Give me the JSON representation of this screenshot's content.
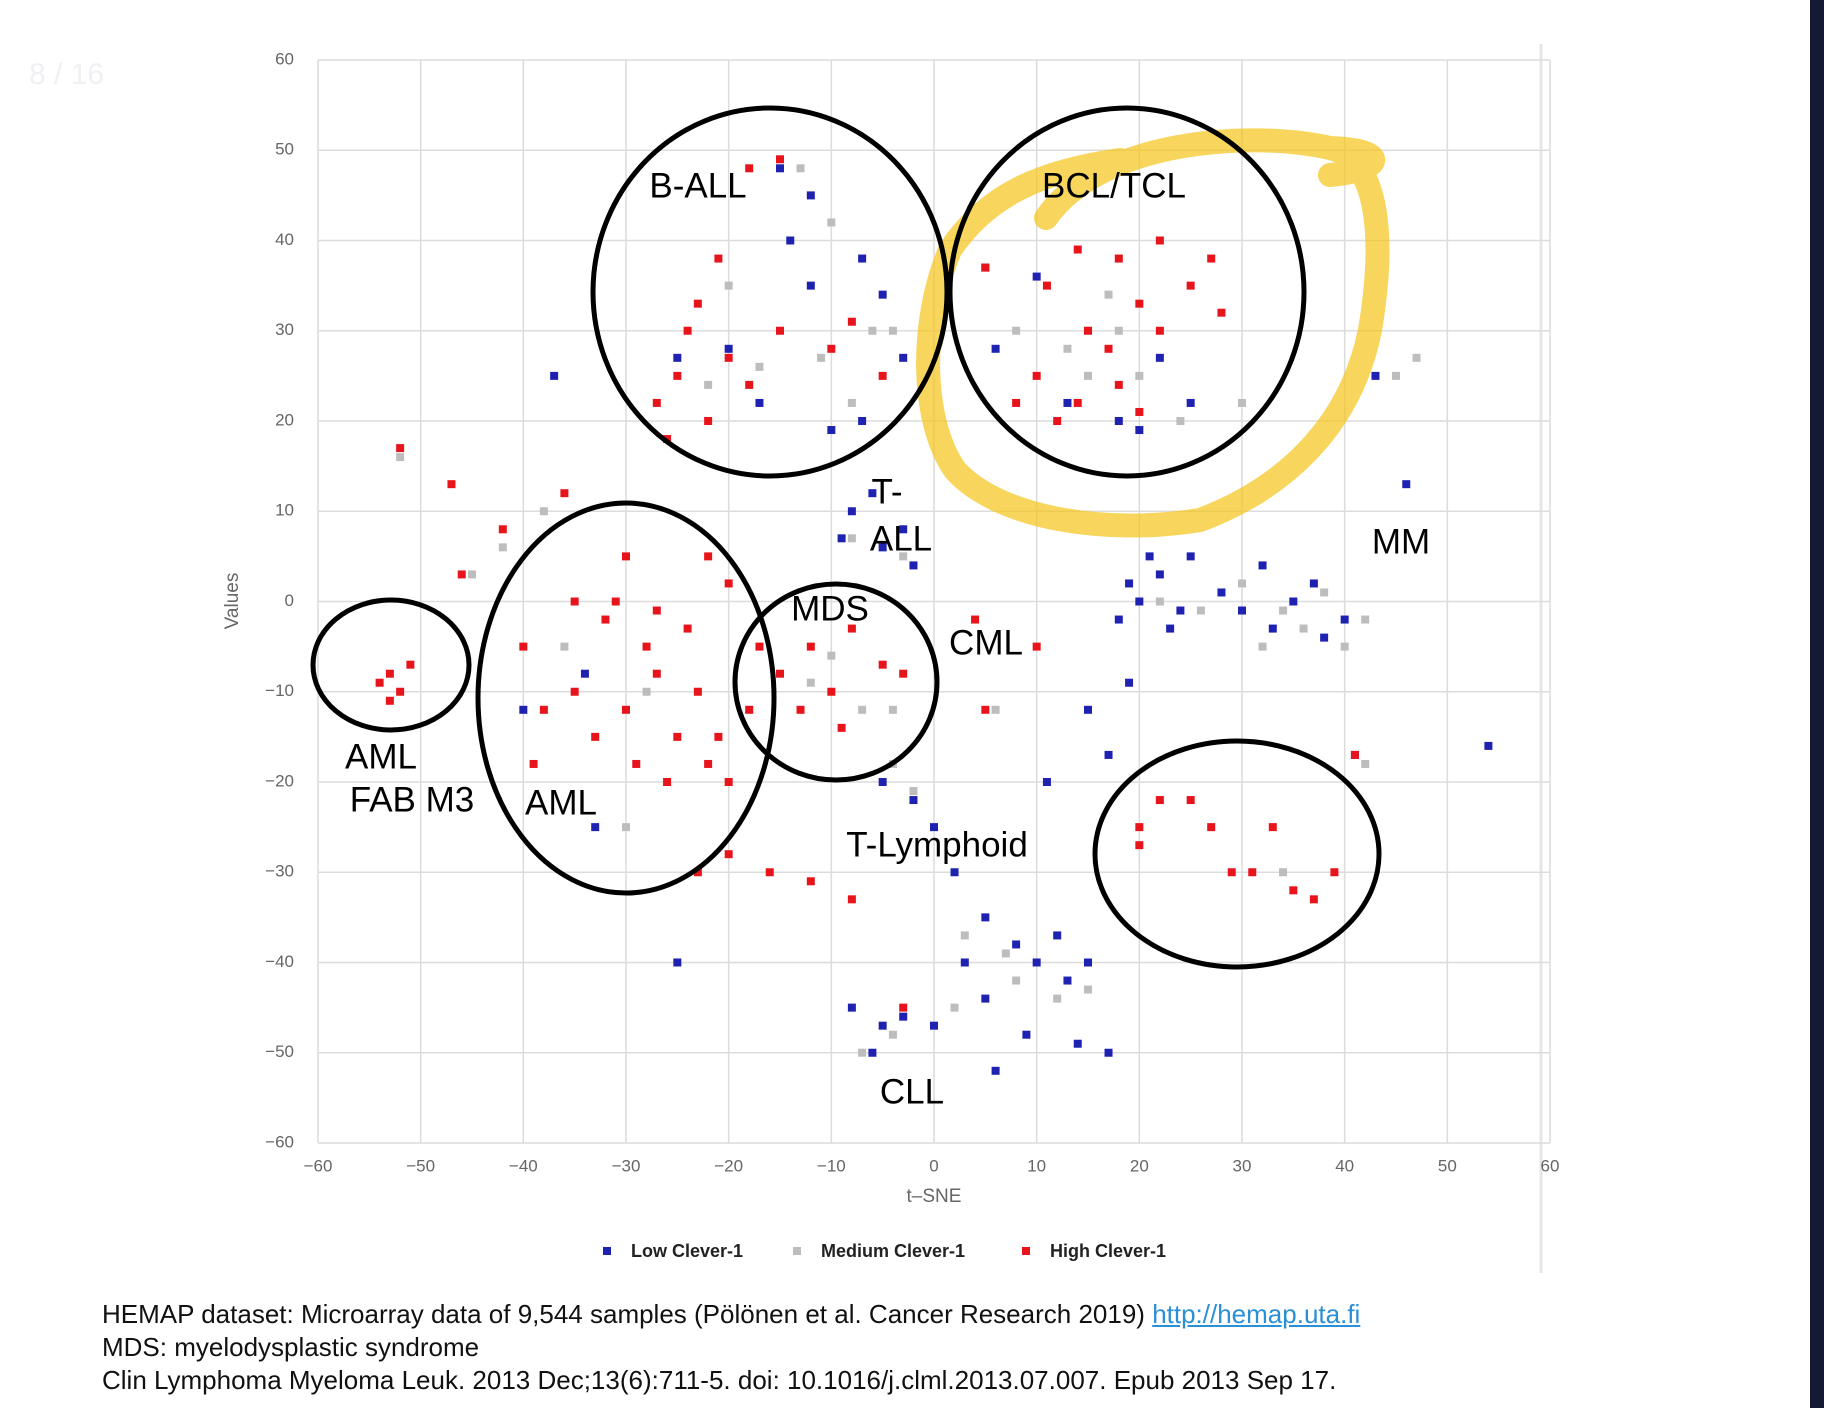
{
  "slide_counter": "8 / 16",
  "footer": {
    "line1": "HEMAP dataset: Microarray data of 9,544 samples (Pölönen et al. Cancer Research 2019)",
    "link": "http://hemap.uta.fi",
    "line2": "MDS: myelodysplastic syndrome",
    "line3": "Clin Lymphoma Myeloma Leuk. 2013 Dec;13(6):711-5. doi: 10.1016/j.clml.2013.07.007. Epub 2013 Sep 17."
  },
  "chart_data": {
    "type": "scatter",
    "x_label": "t–SNE",
    "y_label": "Values",
    "xlim": [
      -60,
      60
    ],
    "ylim": [
      -60,
      60
    ],
    "grid": true,
    "legend_position": "bottom",
    "xticks": [
      {
        "value": -60,
        "label": "−60"
      },
      {
        "value": -50,
        "label": "−50"
      },
      {
        "value": -40,
        "label": "−40"
      },
      {
        "value": -30,
        "label": "−30"
      },
      {
        "value": -20,
        "label": "−20"
      },
      {
        "value": -10,
        "label": "−10"
      },
      0,
      10,
      20,
      30,
      40,
      50,
      60
    ],
    "yticks": [
      {
        "value": -60,
        "label": "−60"
      },
      {
        "value": -50,
        "label": "−50"
      },
      {
        "value": -40,
        "label": "−40"
      },
      {
        "value": -30,
        "label": "−30"
      },
      {
        "value": -20,
        "label": "−20"
      },
      {
        "value": -10,
        "label": "−10"
      },
      0,
      10,
      20,
      30,
      40,
      50,
      60
    ],
    "annotations": [
      "B-ALL",
      "BCL/TCL",
      "T-",
      "ALL",
      "MM",
      "MDS",
      "CML",
      "AML",
      "FAB M3",
      "AML",
      "T-Lymphoid",
      "CLL"
    ],
    "series": [
      {
        "name": "Low Clever-1",
        "color": "#1f22b0",
        "x": [
          -15,
          -12,
          -20,
          -25,
          -10,
          -7,
          -12,
          -7,
          -5,
          -14,
          -3,
          -17,
          5,
          13,
          18,
          22,
          20,
          10,
          25,
          6,
          -8,
          -5,
          -3,
          -9,
          -2,
          -6,
          20,
          22,
          24,
          18,
          25,
          23,
          30,
          33,
          35,
          37,
          32,
          38,
          40,
          28,
          21,
          19,
          -5,
          -2,
          0,
          2,
          5,
          8,
          10,
          13,
          15,
          12,
          3,
          -8,
          -5,
          -3,
          -6,
          0,
          5,
          9,
          14,
          17,
          6,
          11,
          15,
          17,
          19,
          41,
          43,
          -37,
          -25,
          -40,
          -33,
          54,
          46,
          -34
        ],
        "values": [
          48,
          45,
          28,
          27,
          19,
          20,
          35,
          38,
          34,
          40,
          27,
          22,
          37,
          22,
          20,
          27,
          19,
          36,
          22,
          28,
          10,
          6,
          8,
          7,
          4,
          12,
          0,
          3,
          -1,
          -2,
          5,
          -3,
          -1,
          -3,
          0,
          2,
          4,
          -4,
          -2,
          1,
          5,
          2,
          -20,
          -22,
          -25,
          -30,
          -35,
          -38,
          -40,
          -42,
          -40,
          -37,
          -40,
          -45,
          -47,
          -46,
          -50,
          -47,
          -44,
          -48,
          -49,
          -50,
          -52,
          -20,
          -12,
          -17,
          -9,
          -17,
          25,
          25,
          -40,
          -12,
          -25,
          -16,
          13,
          -8
        ]
      },
      {
        "name": "Medium Clever-1",
        "color": "#bdbdbd",
        "x": [
          -13,
          -22,
          -17,
          -8,
          -6,
          -11,
          -20,
          -4,
          -10,
          13,
          18,
          15,
          20,
          8,
          24,
          17,
          30,
          26,
          34,
          36,
          30,
          40,
          42,
          32,
          22,
          38,
          -45,
          -42,
          -30,
          -28,
          -36,
          -10,
          -7,
          -12,
          -4,
          -4,
          -2,
          3,
          8,
          12,
          -7,
          -4,
          2,
          15,
          6,
          7,
          -38,
          -52,
          47,
          45,
          34,
          42,
          -8,
          -3
        ],
        "values": [
          48,
          24,
          26,
          22,
          30,
          27,
          35,
          30,
          42,
          28,
          30,
          25,
          25,
          30,
          20,
          34,
          22,
          -1,
          -1,
          -3,
          2,
          -5,
          -2,
          -5,
          0,
          1,
          3,
          6,
          -25,
          -10,
          -5,
          -6,
          -12,
          -9,
          -12,
          -18,
          -21,
          -37,
          -42,
          -44,
          -50,
          -48,
          -45,
          -43,
          -12,
          -39,
          10,
          16,
          27,
          25,
          -30,
          -18,
          7,
          5
        ]
      },
      {
        "name": "High Clever-1",
        "color": "#e8141b",
        "x": [
          -25,
          -22,
          -27,
          -20,
          -24,
          -18,
          -26,
          -15,
          -21,
          -18,
          -15,
          -10,
          -8,
          -5,
          -23,
          14,
          18,
          22,
          25,
          20,
          15,
          10,
          8,
          12,
          18,
          22,
          28,
          17,
          5,
          27,
          11,
          14,
          20,
          -35,
          -30,
          -25,
          -22,
          -20,
          -28,
          -32,
          -27,
          -24,
          -20,
          -22,
          -30,
          -33,
          -38,
          -26,
          -29,
          -35,
          -40,
          -42,
          -36,
          -31,
          -23,
          -21,
          -18,
          -39,
          -27,
          -53,
          -52,
          -54,
          -51,
          -53,
          -15,
          -12,
          -10,
          -8,
          -5,
          -13,
          -17,
          -3,
          -9,
          20,
          22,
          25,
          27,
          29,
          31,
          33,
          35,
          37,
          39,
          20,
          -16,
          -12,
          -8,
          -20,
          5,
          -52,
          4,
          10,
          -47,
          -46,
          41,
          -3,
          -23
        ],
        "values": [
          25,
          20,
          22,
          27,
          30,
          24,
          18,
          30,
          38,
          48,
          49,
          28,
          31,
          25,
          33,
          39,
          38,
          40,
          35,
          33,
          30,
          25,
          22,
          20,
          24,
          30,
          32,
          28,
          37,
          38,
          35,
          22,
          21,
          -10,
          -12,
          -15,
          -18,
          -20,
          -5,
          -2,
          -8,
          -3,
          2,
          5,
          5,
          -15,
          -12,
          -20,
          -18,
          0,
          -5,
          8,
          12,
          0,
          -10,
          -15,
          -12,
          -18,
          -1,
          -8,
          -10,
          -9,
          -7,
          -11,
          -8,
          -5,
          -10,
          -3,
          -7,
          -12,
          -5,
          -8,
          -14,
          -25,
          -22,
          -22,
          -25,
          -30,
          -30,
          -25,
          -32,
          -33,
          -30,
          -27,
          -30,
          -31,
          -33,
          -28,
          -12,
          17,
          -2,
          -5,
          13,
          3,
          -17,
          -45,
          -30
        ]
      }
    ]
  }
}
